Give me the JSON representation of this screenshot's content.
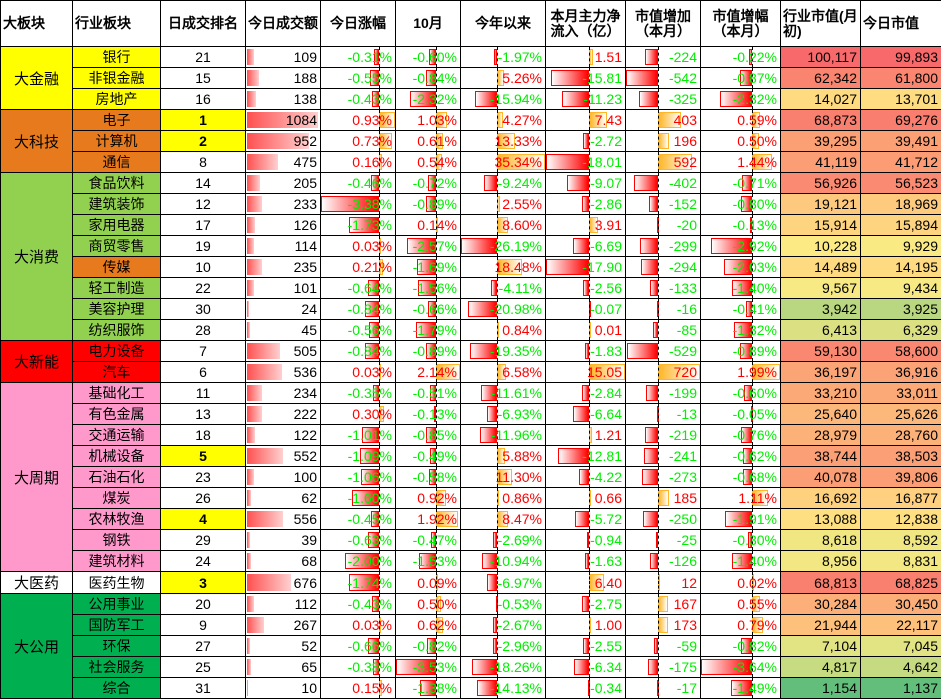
{
  "headers": [
    "大板块",
    "行业板块",
    "日成交排名",
    "今日成交额",
    "今日涨幅",
    "10月",
    "今年以来",
    "本月主力净流入（亿）",
    "市值增加（本月）",
    "市值增幅（本月）",
    "行业市值(月初)",
    "今日市值"
  ],
  "colors": {
    "positive_text": "#ff0000",
    "negative_text": "#00ee00",
    "negative_bar": "#ff0000",
    "positive_bar": "#ffb628",
    "heat_high": "#f8696b",
    "heat_mid": "#ffeb84",
    "heat_low": "#63be7b",
    "top_rank": "#ffff00"
  },
  "groups": [
    {
      "name": "大金融",
      "color": "#ffff00",
      "rows": [
        {
          "industry": "银行",
          "rank": 21,
          "turnover": 109,
          "today": "-0.31%",
          "oct": "-0.60%",
          "ytd": "-1.97%",
          "inflow": "1.51",
          "cap_add": "-224",
          "cap_pct": "-0.22%",
          "cap_start": "100,117",
          "cap_today": "99,893"
        },
        {
          "industry": "非银金融",
          "rank": 15,
          "turnover": 188,
          "today": "-0.55%",
          "oct": "-0.84%",
          "ytd": "5.26%",
          "inflow": "-15.81",
          "cap_add": "-542",
          "cap_pct": "-0.87%",
          "cap_start": "62,342",
          "cap_today": "61,800"
        },
        {
          "industry": "房地产",
          "rank": 16,
          "turnover": 138,
          "today": "-0.43%",
          "oct": "-2.32%",
          "ytd": "-15.94%",
          "inflow": "-11.23",
          "cap_add": "-325",
          "cap_pct": "-2.32%",
          "cap_start": "14,027",
          "cap_today": "13,701"
        }
      ]
    },
    {
      "name": "大科技",
      "color": "#e87a1e",
      "rows": [
        {
          "industry": "电子",
          "rank": 1,
          "turnover": 1084,
          "today": "0.93%",
          "oct": "1.03%",
          "ytd": "4.27%",
          "inflow": "7.43",
          "cap_add": "403",
          "cap_pct": "0.59%",
          "cap_start": "68,873",
          "cap_today": "69,276"
        },
        {
          "industry": "计算机",
          "rank": 2,
          "turnover": 952,
          "today": "0.73%",
          "oct": "0.61%",
          "ytd": "13.33%",
          "inflow": "-2.72",
          "cap_add": "196",
          "cap_pct": "0.50%",
          "cap_start": "39,295",
          "cap_today": "39,491"
        },
        {
          "industry": "通信",
          "rank": 8,
          "turnover": 475,
          "today": "0.16%",
          "oct": "0.54%",
          "ytd": "35.34%",
          "inflow": "-18.01",
          "cap_add": "592",
          "cap_pct": "1.44%",
          "cap_start": "41,119",
          "cap_today": "41,712"
        }
      ]
    },
    {
      "name": "大消费",
      "color": "#92d050",
      "rows": [
        {
          "industry": "食品饮料",
          "rank": 14,
          "turnover": 205,
          "today": "-0.46%",
          "oct": "-0.72%",
          "ytd": "-9.24%",
          "inflow": "-9.07",
          "cap_add": "-402",
          "cap_pct": "-0.71%",
          "cap_start": "56,926",
          "cap_today": "56,523"
        },
        {
          "industry": "建筑装饰",
          "rank": 12,
          "turnover": 233,
          "today": "-3.38%",
          "oct": "-0.89%",
          "ytd": "2.55%",
          "inflow": "-2.86",
          "cap_add": "-152",
          "cap_pct": "-0.80%",
          "cap_start": "19,121",
          "cap_today": "18,969"
        },
        {
          "industry": "家用电器",
          "rank": 17,
          "turnover": 126,
          "today": "-1.73%",
          "oct": "0.14%",
          "ytd": "8.60%",
          "inflow": "3.91",
          "cap_add": "-20",
          "cap_pct": "-0.13%",
          "cap_start": "15,914",
          "cap_today": "15,894"
        },
        {
          "industry": "商贸零售",
          "rank": 19,
          "turnover": 114,
          "today": "0.03%",
          "oct": "-2.57%",
          "ytd": "-26.19%",
          "inflow": "-6.69",
          "cap_add": "-299",
          "cap_pct": "-2.92%",
          "cap_start": "10,228",
          "cap_today": "9,929"
        },
        {
          "industry": "传媒",
          "rank": 10,
          "turnover": 235,
          "today": "0.21%",
          "oct": "-1.69%",
          "ytd": "18.48%",
          "inflow": "-17.90",
          "cap_add": "-294",
          "cap_pct": "-2.03%",
          "cap_start": "14,489",
          "cap_today": "14,195",
          "color": "#e87a1e"
        },
        {
          "industry": "轻工制造",
          "rank": 22,
          "turnover": 101,
          "today": "-0.64%",
          "oct": "-1.56%",
          "ytd": "-4.11%",
          "inflow": "-2.56",
          "cap_add": "-133",
          "cap_pct": "-1.40%",
          "cap_start": "9,567",
          "cap_today": "9,434"
        },
        {
          "industry": "美容护理",
          "rank": 30,
          "turnover": 24,
          "today": "-0.84%",
          "oct": "-0.66%",
          "ytd": "-20.98%",
          "inflow": "-0.07",
          "cap_add": "-16",
          "cap_pct": "-0.41%",
          "cap_start": "3,942",
          "cap_today": "3,925"
        },
        {
          "industry": "纺织服饰",
          "rank": 28,
          "turnover": 45,
          "today": "-0.56%",
          "oct": "-1.79%",
          "ytd": "0.84%",
          "inflow": "0.01",
          "cap_add": "-85",
          "cap_pct": "-1.32%",
          "cap_start": "6,413",
          "cap_today": "6,329"
        }
      ]
    },
    {
      "name": "大新能",
      "color": "#ff0000",
      "rows": [
        {
          "industry": "电力设备",
          "rank": 7,
          "turnover": 505,
          "today": "-0.84%",
          "oct": "-0.89%",
          "ytd": "-19.35%",
          "inflow": "-1.83",
          "cap_add": "-529",
          "cap_pct": "-0.89%",
          "cap_start": "59,130",
          "cap_today": "58,600"
        },
        {
          "industry": "汽车",
          "rank": 6,
          "turnover": 536,
          "today": "0.03%",
          "oct": "2.14%",
          "ytd": "6.58%",
          "inflow": "15.05",
          "cap_add": "720",
          "cap_pct": "1.99%",
          "cap_start": "36,197",
          "cap_today": "36,916"
        }
      ]
    },
    {
      "name": "大周期",
      "color": "#ff99cc",
      "rows": [
        {
          "industry": "基础化工",
          "rank": 11,
          "turnover": 234,
          "today": "-0.35%",
          "oct": "-0.51%",
          "ytd": "-11.61%",
          "inflow": "-2.84",
          "cap_add": "-199",
          "cap_pct": "-0.60%",
          "cap_start": "33,210",
          "cap_today": "33,011"
        },
        {
          "industry": "有色金属",
          "rank": 13,
          "turnover": 222,
          "today": "0.30%",
          "oct": "-0.13%",
          "ytd": "-6.93%",
          "inflow": "-6.64",
          "cap_add": "-13",
          "cap_pct": "-0.05%",
          "cap_start": "25,640",
          "cap_today": "25,626"
        },
        {
          "industry": "交通运输",
          "rank": 18,
          "turnover": 122,
          "today": "-1.01%",
          "oct": "-0.85%",
          "ytd": "-11.96%",
          "inflow": "1.21",
          "cap_add": "-219",
          "cap_pct": "-0.76%",
          "cap_start": "28,979",
          "cap_today": "28,760"
        },
        {
          "industry": "机械设备",
          "rank": 5,
          "turnover": 552,
          "today": "-1.09%",
          "oct": "-0.49%",
          "ytd": "5.88%",
          "inflow": "-12.81",
          "cap_add": "-241",
          "cap_pct": "-0.62%",
          "cap_start": "38,744",
          "cap_today": "38,503"
        },
        {
          "industry": "石油石化",
          "rank": 23,
          "turnover": 100,
          "today": "-1.06%",
          "oct": "-0.58%",
          "ytd": "11.30%",
          "inflow": "-4.22",
          "cap_add": "-273",
          "cap_pct": "-0.68%",
          "cap_start": "40,078",
          "cap_today": "39,806"
        },
        {
          "industry": "煤炭",
          "rank": 26,
          "turnover": 62,
          "today": "-1.60%",
          "oct": "0.92%",
          "ytd": "0.86%",
          "inflow": "0.66",
          "cap_add": "185",
          "cap_pct": "1.11%",
          "cap_start": "16,692",
          "cap_today": "16,877"
        },
        {
          "industry": "农林牧渔",
          "rank": 4,
          "turnover": 556,
          "today": "-0.45%",
          "oct": "1.92%",
          "ytd": "8.47%",
          "inflow": "-5.72",
          "cap_add": "-250",
          "cap_pct": "-1.91%",
          "cap_start": "13,088",
          "cap_today": "12,838"
        },
        {
          "industry": "钢铁",
          "rank": 29,
          "turnover": 39,
          "today": "-0.63%",
          "oct": "-0.47%",
          "ytd": "-2.69%",
          "inflow": "-0.94",
          "cap_add": "-25",
          "cap_pct": "-0.30%",
          "cap_start": "8,618",
          "cap_today": "8,592"
        },
        {
          "industry": "建筑材料",
          "rank": 24,
          "turnover": 68,
          "today": "-2.00%",
          "oct": "-1.53%",
          "ytd": "-10.94%",
          "inflow": "-1.63",
          "cap_add": "-126",
          "cap_pct": "-1.40%",
          "cap_start": "8,956",
          "cap_today": "8,831"
        }
      ]
    },
    {
      "name": "大医药",
      "color": "#ffffff",
      "rows": [
        {
          "industry": "医药生物",
          "rank": 3,
          "turnover": 676,
          "today": "-1.74%",
          "oct": "0.09%",
          "ytd": "-6.97%",
          "inflow": "6.40",
          "cap_add": "12",
          "cap_pct": "0.02%",
          "cap_start": "68,813",
          "cap_today": "68,825"
        }
      ]
    },
    {
      "name": "大公用",
      "color": "#00b050",
      "rows": [
        {
          "industry": "公用事业",
          "rank": 20,
          "turnover": 112,
          "today": "-0.43%",
          "oct": "0.50%",
          "ytd": "-0.53%",
          "inflow": "-2.75",
          "cap_add": "167",
          "cap_pct": "0.55%",
          "cap_start": "30,284",
          "cap_today": "30,450"
        },
        {
          "industry": "国防军工",
          "rank": 9,
          "turnover": 267,
          "today": "0.03%",
          "oct": "0.62%",
          "ytd": "-2.67%",
          "inflow": "1.00",
          "cap_add": "173",
          "cap_pct": "0.79%",
          "cap_start": "21,944",
          "cap_today": "22,117"
        },
        {
          "industry": "环保",
          "rank": 27,
          "turnover": 52,
          "today": "-0.66%",
          "oct": "-0.82%",
          "ytd": "-2.96%",
          "inflow": "-2.55",
          "cap_add": "-59",
          "cap_pct": "-0.82%",
          "cap_start": "7,104",
          "cap_today": "7,045"
        },
        {
          "industry": "社会服务",
          "rank": 25,
          "turnover": 65,
          "today": "-0.38%",
          "oct": "-3.53%",
          "ytd": "-18.26%",
          "inflow": "-6.34",
          "cap_add": "-175",
          "cap_pct": "-3.64%",
          "cap_start": "4,817",
          "cap_today": "4,642"
        },
        {
          "industry": "综合",
          "rank": 31,
          "turnover": 10,
          "today": "0.15%",
          "oct": "-1.38%",
          "ytd": "-14.13%",
          "inflow": "-0.34",
          "cap_add": "-17",
          "cap_pct": "-1.49%",
          "cap_start": "1,154",
          "cap_today": "1,137"
        }
      ]
    }
  ]
}
